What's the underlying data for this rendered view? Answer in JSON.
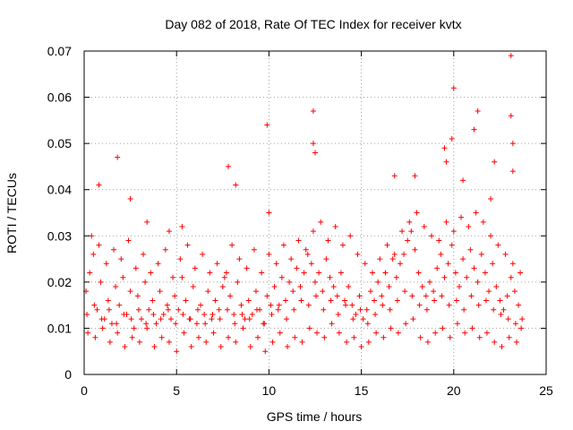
{
  "chart_data": {
    "type": "scatter",
    "title": "Day 082 of 2018, Rate Of TEC Index for receiver kvtx",
    "xlabel": "GPS time / hours",
    "ylabel": "ROTI / TECUs",
    "xlim": [
      0,
      25
    ],
    "ylim": [
      0,
      0.07
    ],
    "x_ticks": [
      0,
      5,
      10,
      15,
      20,
      25
    ],
    "x_tick_labels": [
      "0",
      "5",
      "10",
      "15",
      "20",
      "25"
    ],
    "y_ticks": [
      0,
      0.01,
      0.02,
      0.03,
      0.04,
      0.05,
      0.06,
      0.07
    ],
    "y_tick_labels": [
      "0",
      "0.01",
      "0.02",
      "0.03",
      "0.04",
      "0.05",
      "0.06",
      "0.07"
    ],
    "grid": true,
    "marker": "plus",
    "series_color": "#ff0000",
    "series": [
      {
        "name": "ROTI",
        "x": [
          0.1,
          0.3,
          0.5,
          0.7,
          0.9,
          1.1,
          1.3,
          1.5,
          1.7,
          1.9,
          2.1,
          2.3,
          2.5,
          2.7,
          2.9,
          3.1,
          3.3,
          3.5,
          3.7,
          3.9,
          4.1,
          4.3,
          4.5,
          4.7,
          4.9,
          5.1,
          5.3,
          5.5,
          5.7,
          5.9,
          6.1,
          6.3,
          6.5,
          6.7,
          6.9,
          7.1,
          7.3,
          7.5,
          7.7,
          7.9,
          8.1,
          8.3,
          8.5,
          8.7,
          8.9,
          9.1,
          9.3,
          9.5,
          9.7,
          9.9,
          10.1,
          10.3,
          10.5,
          10.7,
          10.9,
          11.1,
          11.3,
          11.5,
          11.7,
          11.9,
          12.1,
          12.3,
          12.5,
          12.7,
          12.9,
          13.1,
          13.3,
          13.5,
          13.7,
          13.9,
          14.1,
          14.3,
          14.5,
          14.7,
          14.9,
          15.1,
          15.3,
          15.5,
          15.7,
          15.9,
          16.1,
          16.3,
          16.5,
          16.7,
          16.9,
          17.1,
          17.3,
          17.5,
          17.7,
          17.9,
          18.1,
          18.3,
          18.5,
          18.7,
          18.9,
          19.1,
          19.3,
          19.5,
          19.7,
          19.9,
          20.1,
          20.3,
          20.5,
          20.7,
          20.9,
          21.1,
          21.3,
          21.5,
          21.7,
          21.9,
          22.1,
          22.3,
          22.5,
          22.7,
          22.9,
          23.1,
          23.3,
          23.5,
          23.7,
          0.2,
          0.6,
          1.0,
          1.4,
          1.8,
          2.2,
          2.6,
          3.0,
          3.4,
          3.8,
          4.2,
          4.6,
          5.0,
          5.4,
          5.8,
          6.2,
          6.6,
          7.0,
          7.4,
          7.8,
          8.2,
          8.6,
          9.0,
          9.4,
          9.8,
          10.2,
          10.6,
          11.0,
          11.4,
          11.8,
          12.2,
          12.6,
          13.0,
          13.4,
          13.8,
          14.2,
          14.6,
          15.0,
          15.4,
          15.8,
          16.2,
          16.6,
          17.0,
          17.4,
          17.8,
          18.2,
          18.6,
          19.0,
          19.4,
          19.8,
          20.2,
          20.6,
          21.0,
          21.4,
          21.8,
          22.2,
          22.6,
          23.0,
          23.4,
          0.4,
          0.8,
          1.2,
          1.6,
          2.0,
          2.4,
          2.8,
          3.2,
          3.6,
          4.0,
          4.4,
          4.8,
          5.2,
          5.6,
          6.0,
          6.4,
          6.8,
          7.2,
          7.6,
          8.0,
          8.4,
          8.8,
          9.2,
          9.6,
          10.0,
          10.4,
          10.8,
          11.2,
          11.6,
          12.0,
          12.4,
          12.8,
          13.2,
          13.6,
          14.0,
          14.4,
          14.8,
          15.2,
          15.6,
          16.0,
          16.4,
          16.8,
          17.2,
          17.6,
          18.0,
          18.4,
          18.8,
          19.2,
          19.6,
          20.0,
          20.4,
          20.8,
          21.2,
          21.6,
          22.0,
          22.4,
          22.8,
          23.2,
          23.6,
          0.15,
          0.55,
          0.95,
          1.35,
          1.75,
          2.15,
          2.55,
          2.95,
          3.35,
          3.75,
          4.15,
          4.55,
          4.95,
          5.35,
          5.75,
          6.15,
          6.55,
          6.95,
          7.35,
          7.75,
          8.15,
          8.55,
          8.95,
          9.35,
          9.75,
          10.15,
          10.55,
          10.95,
          11.35,
          11.75,
          12.15,
          12.55,
          12.95,
          13.35,
          13.75,
          14.15,
          14.55,
          14.95,
          15.35,
          15.75,
          16.15,
          16.55,
          16.95,
          17.35,
          17.75,
          18.15,
          18.55,
          18.95,
          19.35,
          19.75,
          20.15,
          20.55,
          20.95,
          21.35,
          21.75,
          22.15,
          22.55,
          22.95,
          23.35,
          23.65,
          0.8,
          1.8,
          2.5,
          3.4,
          4.6,
          5.3,
          7.8,
          8.2,
          9.9,
          10.0,
          12.4,
          12.4,
          12.5,
          16.8,
          17.9,
          19.5,
          19.6,
          19.9,
          20.0,
          20.5,
          21.1,
          21.3,
          22.0,
          22.2,
          23.1,
          23.1,
          23.2,
          23.2
        ],
        "y": [
          0.018,
          0.022,
          0.026,
          0.014,
          0.02,
          0.012,
          0.016,
          0.011,
          0.019,
          0.015,
          0.021,
          0.013,
          0.018,
          0.01,
          0.017,
          0.012,
          0.02,
          0.014,
          0.016,
          0.011,
          0.018,
          0.013,
          0.015,
          0.012,
          0.017,
          0.014,
          0.021,
          0.016,
          0.012,
          0.019,
          0.011,
          0.015,
          0.013,
          0.018,
          0.012,
          0.016,
          0.014,
          0.019,
          0.022,
          0.017,
          0.013,
          0.02,
          0.015,
          0.012,
          0.016,
          0.013,
          0.018,
          0.014,
          0.011,
          0.017,
          0.015,
          0.019,
          0.014,
          0.021,
          0.016,
          0.02,
          0.018,
          0.023,
          0.019,
          0.022,
          0.026,
          0.024,
          0.02,
          0.022,
          0.018,
          0.025,
          0.021,
          0.019,
          0.017,
          0.022,
          0.016,
          0.019,
          0.015,
          0.013,
          0.017,
          0.012,
          0.014,
          0.018,
          0.016,
          0.02,
          0.017,
          0.022,
          0.019,
          0.025,
          0.021,
          0.024,
          0.026,
          0.029,
          0.031,
          0.027,
          0.022,
          0.019,
          0.017,
          0.02,
          0.018,
          0.023,
          0.026,
          0.021,
          0.024,
          0.028,
          0.022,
          0.019,
          0.025,
          0.021,
          0.027,
          0.023,
          0.02,
          0.026,
          0.022,
          0.018,
          0.024,
          0.019,
          0.016,
          0.014,
          0.017,
          0.021,
          0.018,
          0.015,
          0.012,
          0.009,
          0.008,
          0.01,
          0.007,
          0.009,
          0.006,
          0.008,
          0.007,
          0.01,
          0.006,
          0.008,
          0.007,
          0.005,
          0.009,
          0.006,
          0.008,
          0.007,
          0.009,
          0.006,
          0.008,
          0.007,
          0.01,
          0.006,
          0.008,
          0.005,
          0.007,
          0.009,
          0.006,
          0.008,
          0.007,
          0.01,
          0.009,
          0.008,
          0.011,
          0.009,
          0.007,
          0.008,
          0.006,
          0.007,
          0.009,
          0.008,
          0.01,
          0.009,
          0.011,
          0.012,
          0.008,
          0.007,
          0.009,
          0.01,
          0.008,
          0.011,
          0.009,
          0.01,
          0.008,
          0.009,
          0.007,
          0.006,
          0.008,
          0.007,
          0.03,
          0.028,
          0.024,
          0.027,
          0.025,
          0.029,
          0.023,
          0.026,
          0.022,
          0.024,
          0.027,
          0.021,
          0.025,
          0.028,
          0.023,
          0.026,
          0.022,
          0.024,
          0.021,
          0.028,
          0.025,
          0.023,
          0.027,
          0.022,
          0.026,
          0.024,
          0.028,
          0.025,
          0.029,
          0.027,
          0.031,
          0.033,
          0.029,
          0.032,
          0.028,
          0.03,
          0.026,
          0.024,
          0.022,
          0.025,
          0.028,
          0.026,
          0.031,
          0.033,
          0.035,
          0.032,
          0.03,
          0.029,
          0.033,
          0.031,
          0.034,
          0.032,
          0.035,
          0.033,
          0.03,
          0.028,
          0.026,
          0.024,
          0.022,
          0.013,
          0.015,
          0.012,
          0.014,
          0.011,
          0.013,
          0.012,
          0.014,
          0.011,
          0.013,
          0.012,
          0.014,
          0.011,
          0.013,
          0.012,
          0.014,
          0.011,
          0.013,
          0.012,
          0.014,
          0.011,
          0.013,
          0.012,
          0.014,
          0.011,
          0.013,
          0.015,
          0.012,
          0.014,
          0.016,
          0.015,
          0.017,
          0.014,
          0.016,
          0.013,
          0.015,
          0.012,
          0.014,
          0.011,
          0.013,
          0.015,
          0.014,
          0.016,
          0.018,
          0.017,
          0.015,
          0.014,
          0.016,
          0.017,
          0.015,
          0.016,
          0.014,
          0.017,
          0.015,
          0.016,
          0.014,
          0.013,
          0.012,
          0.011,
          0.01,
          0.041,
          0.047,
          0.038,
          0.033,
          0.031,
          0.032,
          0.045,
          0.041,
          0.054,
          0.035,
          0.057,
          0.05,
          0.048,
          0.043,
          0.043,
          0.049,
          0.046,
          0.051,
          0.062,
          0.042,
          0.053,
          0.057,
          0.038,
          0.046,
          0.069,
          0.056,
          0.05,
          0.044
        ]
      }
    ]
  }
}
